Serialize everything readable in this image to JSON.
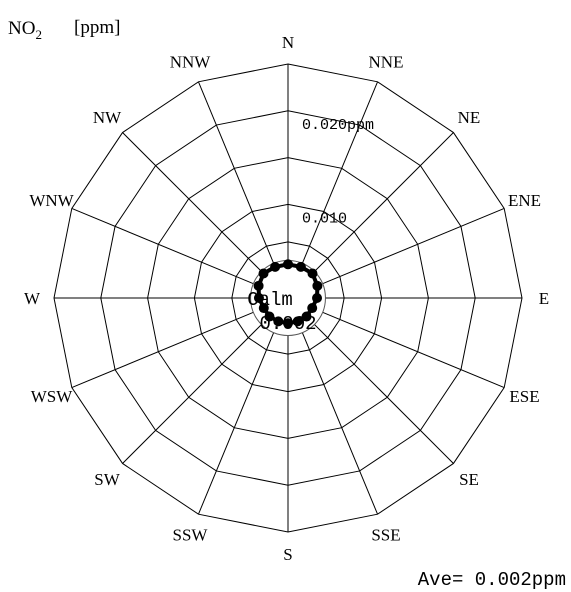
{
  "chart_data": {
    "type": "radar",
    "title_main": "NO",
    "title_sub": "2",
    "unit_label": "[ppm]",
    "directions": [
      "N",
      "NNE",
      "NE",
      "ENE",
      "E",
      "ESE",
      "SE",
      "SSE",
      "S",
      "SSW",
      "SW",
      "WSW",
      "W",
      "WNW",
      "NW",
      "NNW"
    ],
    "values": [
      0.0036,
      0.0036,
      0.0037,
      0.0034,
      0.0031,
      0.0028,
      0.0028,
      0.0027,
      0.0027,
      0.0027,
      0.0028,
      0.0028,
      0.0031,
      0.0034,
      0.0037,
      0.0036
    ],
    "range": [
      0,
      0.025
    ],
    "calm_radius_value": 0.004,
    "ring_values": [
      0.004,
      0.006,
      0.01,
      0.015,
      0.02,
      0.025
    ],
    "scale_labels": [
      {
        "value": 0.02,
        "text": "0.020ppm"
      },
      {
        "value": 0.01,
        "text": "0.010"
      }
    ],
    "calm_label": "Calm",
    "calm_value": "0.002",
    "average_text": "Ave= 0.002ppm",
    "colors": {
      "series": "#000000",
      "grid": "#000000",
      "calm_ring": "#555555"
    }
  }
}
